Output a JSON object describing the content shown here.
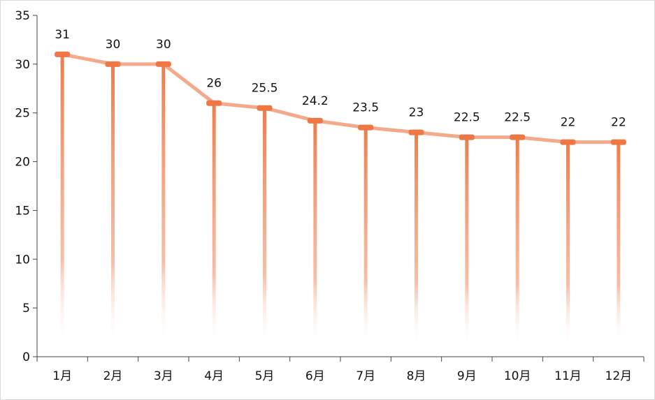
{
  "chart_data": {
    "type": "line",
    "title": "",
    "xlabel": "",
    "ylabel": "",
    "categories": [
      "1月",
      "2月",
      "3月",
      "4月",
      "5月",
      "6月",
      "7月",
      "8月",
      "9月",
      "10月",
      "11月",
      "12月"
    ],
    "series": [
      {
        "values": [
          31,
          30,
          30,
          26,
          25.5,
          24.2,
          23.5,
          23,
          22.5,
          22.5,
          22,
          22
        ],
        "labels": [
          "31",
          "30",
          "30",
          "26",
          "25.5",
          "24.2",
          "23.5",
          "23",
          "22.5",
          "22.5",
          "22",
          "22"
        ]
      }
    ],
    "ylim": [
      0,
      35
    ],
    "yticks": [
      0,
      5,
      10,
      15,
      20,
      25,
      30,
      35
    ],
    "grid": false,
    "legend": "none",
    "colors": {
      "line": "#f4a98a",
      "marker": "#ee7845",
      "drop_line_top": "#ee7d4b",
      "drop_line_bottom": "#ffffff",
      "axis": "#444444"
    }
  }
}
